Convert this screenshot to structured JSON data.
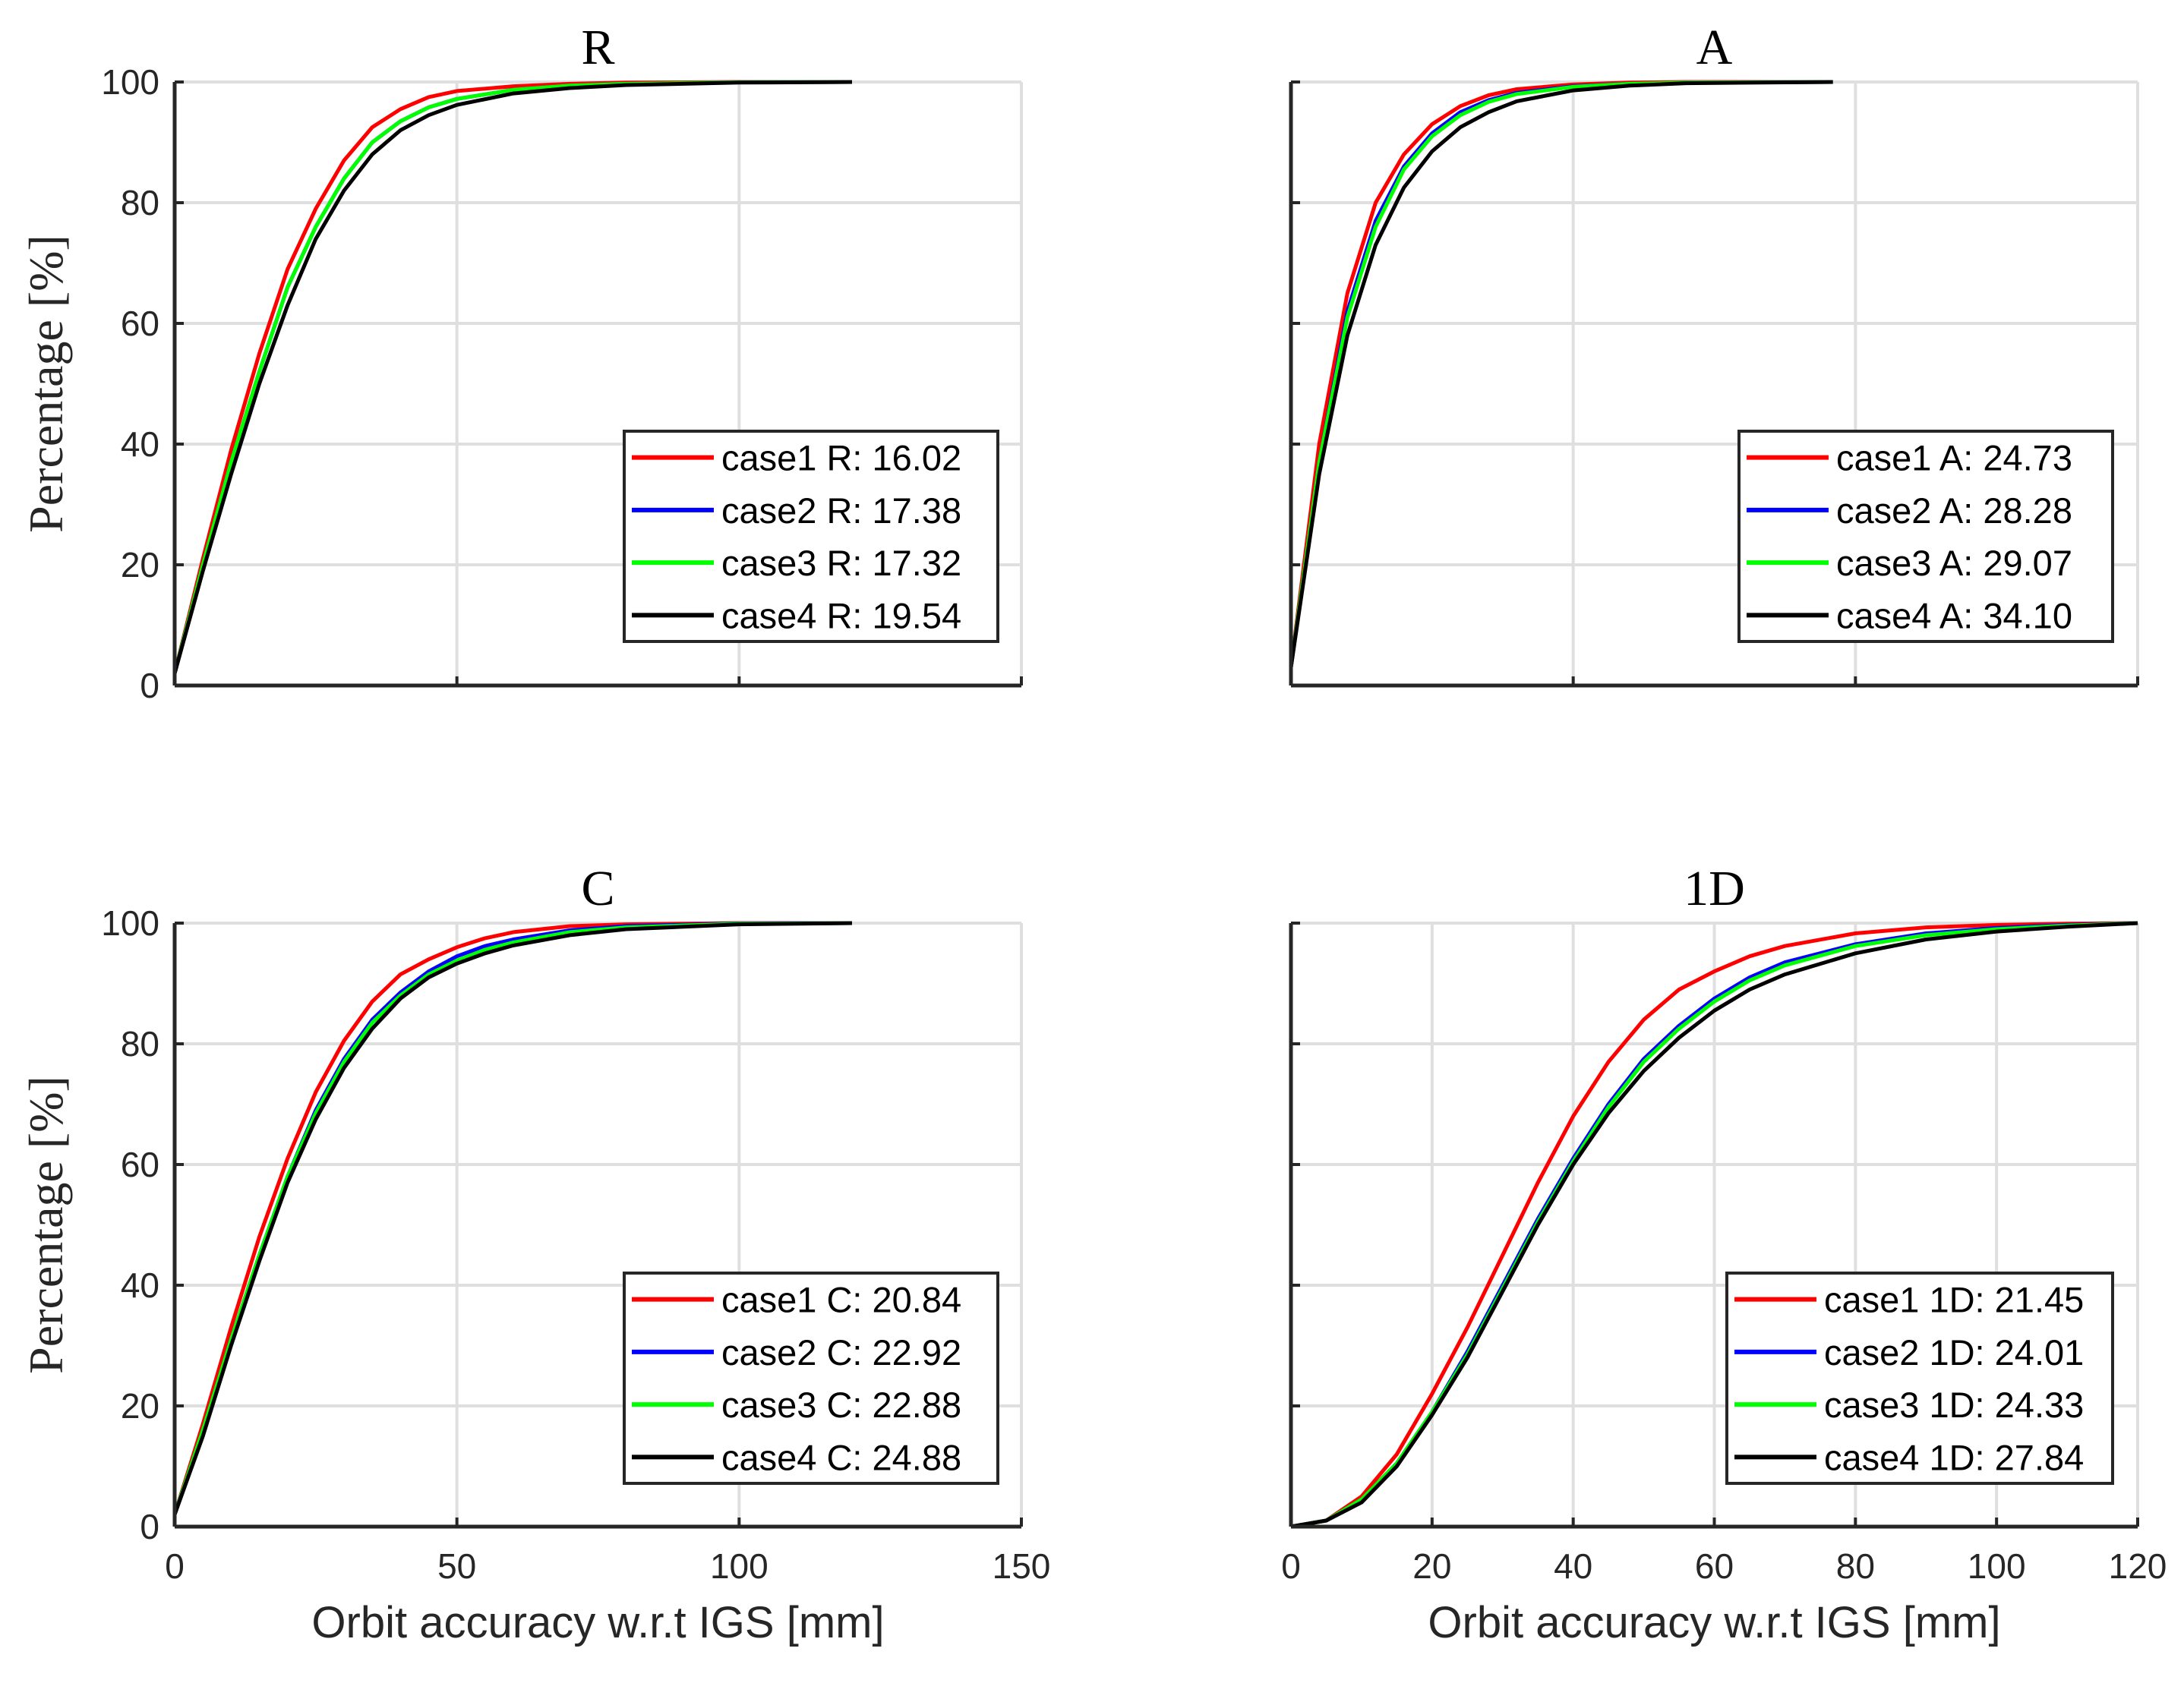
{
  "chart_data": [
    {
      "type": "line",
      "title": "R",
      "ylabel": "Percentage [%]",
      "xlabel": "",
      "xlim": [
        0,
        150
      ],
      "ylim": [
        0,
        100
      ],
      "xticks": [
        "0",
        "50",
        "100",
        "150"
      ],
      "yticks": [
        "0",
        "20",
        "40",
        "60",
        "80",
        "100"
      ],
      "show_xtick_labels": false,
      "show_ytick_labels": true,
      "legend_position": "middle-right",
      "series": [
        {
          "name": "case1 R: 16.02",
          "color": "#ff0000",
          "x": [
            0,
            5,
            10,
            15,
            20,
            25,
            30,
            35,
            40,
            45,
            50,
            60,
            70,
            80,
            100,
            120
          ],
          "values": [
            2,
            21,
            39,
            55,
            69,
            79,
            87,
            92.5,
            95.5,
            97.5,
            98.5,
            99.3,
            99.7,
            99.9,
            100,
            100
          ]
        },
        {
          "name": "case2 R: 17.38",
          "color": "#0000ff",
          "x": [
            0,
            5,
            10,
            15,
            20,
            25,
            30,
            35,
            40,
            45,
            50,
            60,
            70,
            80,
            100,
            120
          ],
          "values": [
            2,
            20,
            37,
            52,
            66,
            76,
            84,
            90,
            93.5,
            95.8,
            97.2,
            98.7,
            99.4,
            99.7,
            99.95,
            100
          ]
        },
        {
          "name": "case3 R: 17.32",
          "color": "#00ff00",
          "x": [
            0,
            5,
            10,
            15,
            20,
            25,
            30,
            35,
            40,
            45,
            50,
            60,
            70,
            80,
            100,
            120
          ],
          "values": [
            2,
            20,
            37,
            52,
            66,
            76,
            84,
            90,
            93.5,
            95.8,
            97.2,
            98.7,
            99.4,
            99.7,
            99.95,
            100
          ]
        },
        {
          "name": "case4 R: 19.54",
          "color": "#000000",
          "x": [
            0,
            5,
            10,
            15,
            20,
            25,
            30,
            35,
            40,
            45,
            50,
            60,
            70,
            80,
            100,
            120
          ],
          "values": [
            2,
            19,
            35,
            50,
            63,
            74,
            82,
            88,
            92,
            94.5,
            96.2,
            98.1,
            99,
            99.5,
            99.9,
            100
          ]
        }
      ]
    },
    {
      "type": "line",
      "title": "A",
      "ylabel": "",
      "xlabel": "",
      "xlim": [
        0,
        150
      ],
      "ylim": [
        0,
        100
      ],
      "xticks": [
        "0",
        "50",
        "100",
        "150"
      ],
      "yticks": [
        "0",
        "20",
        "40",
        "60",
        "80",
        "100"
      ],
      "show_xtick_labels": false,
      "show_ytick_labels": false,
      "legend_position": "middle-right",
      "series": [
        {
          "name": "case1 A: 24.73",
          "color": "#ff0000",
          "x": [
            0,
            5,
            10,
            15,
            20,
            25,
            30,
            35,
            40,
            50,
            60,
            70,
            96
          ],
          "values": [
            3,
            40,
            65,
            80,
            88,
            93,
            96,
            97.8,
            98.8,
            99.6,
            99.9,
            100,
            100
          ]
        },
        {
          "name": "case2 A: 28.28",
          "color": "#0000ff",
          "x": [
            0,
            5,
            10,
            15,
            20,
            25,
            30,
            35,
            40,
            50,
            60,
            70,
            96
          ],
          "values": [
            3,
            37,
            62,
            77,
            86,
            91.5,
            95,
            97,
            98.2,
            99.3,
            99.7,
            99.9,
            100
          ]
        },
        {
          "name": "case3 A: 29.07",
          "color": "#00ff00",
          "x": [
            0,
            5,
            10,
            15,
            20,
            25,
            30,
            35,
            40,
            50,
            60,
            70,
            96
          ],
          "values": [
            3,
            37,
            61,
            76,
            85.5,
            91,
            94.5,
            96.7,
            98,
            99.2,
            99.7,
            99.9,
            100
          ]
        },
        {
          "name": "case4 A: 34.10",
          "color": "#000000",
          "x": [
            0,
            5,
            10,
            15,
            20,
            25,
            30,
            35,
            40,
            50,
            60,
            70,
            96
          ],
          "values": [
            3,
            35,
            58,
            73,
            82.5,
            88.5,
            92.5,
            95,
            96.8,
            98.6,
            99.4,
            99.8,
            100
          ]
        }
      ]
    },
    {
      "type": "line",
      "title": "C",
      "ylabel": "Percentage [%]",
      "xlabel": "Orbit accuracy w.r.t IGS [mm]",
      "xlim": [
        0,
        150
      ],
      "ylim": [
        0,
        100
      ],
      "xticks": [
        "0",
        "50",
        "100",
        "150"
      ],
      "yticks": [
        "0",
        "20",
        "40",
        "60",
        "80",
        "100"
      ],
      "show_xtick_labels": true,
      "show_ytick_labels": true,
      "legend_position": "bottom-right",
      "series": [
        {
          "name": "case1 C: 20.84",
          "color": "#ff0000",
          "x": [
            0,
            5,
            10,
            15,
            20,
            25,
            30,
            35,
            40,
            45,
            50,
            55,
            60,
            70,
            80,
            100,
            120
          ],
          "values": [
            2,
            17,
            33,
            48,
            61,
            72,
            80.5,
            87,
            91.5,
            94,
            96,
            97.5,
            98.5,
            99.5,
            99.8,
            100,
            100
          ]
        },
        {
          "name": "case2 C: 22.92",
          "color": "#0000ff",
          "x": [
            0,
            5,
            10,
            15,
            20,
            25,
            30,
            35,
            40,
            45,
            50,
            55,
            60,
            70,
            80,
            100,
            120
          ],
          "values": [
            2,
            16,
            31,
            45,
            58,
            69,
            77.5,
            84,
            88.5,
            92,
            94.5,
            96.2,
            97.3,
            98.8,
            99.5,
            99.95,
            100
          ]
        },
        {
          "name": "case3 C: 22.88",
          "color": "#00ff00",
          "x": [
            0,
            5,
            10,
            15,
            20,
            25,
            30,
            35,
            40,
            45,
            50,
            55,
            60,
            70,
            80,
            100,
            120
          ],
          "values": [
            2,
            16,
            31,
            45,
            58,
            68.5,
            77,
            83.5,
            88,
            91.5,
            93.8,
            95.6,
            96.8,
            98.5,
            99.3,
            99.9,
            100
          ]
        },
        {
          "name": "case4 C: 24.88",
          "color": "#000000",
          "x": [
            0,
            5,
            10,
            15,
            20,
            25,
            30,
            35,
            40,
            45,
            50,
            55,
            60,
            70,
            80,
            100,
            120
          ],
          "values": [
            2,
            15,
            30,
            44,
            57,
            67.5,
            76,
            82.5,
            87.5,
            91,
            93.3,
            95,
            96.3,
            98,
            99,
            99.8,
            100
          ]
        }
      ]
    },
    {
      "type": "line",
      "title": "1D",
      "ylabel": "",
      "xlabel": "Orbit accuracy w.r.t IGS [mm]",
      "xlim": [
        0,
        120
      ],
      "ylim": [
        0,
        100
      ],
      "xticks": [
        "0",
        "20",
        "40",
        "60",
        "80",
        "100",
        "120"
      ],
      "yticks": [
        "0",
        "20",
        "40",
        "60",
        "80",
        "100"
      ],
      "show_xtick_labels": true,
      "show_ytick_labels": false,
      "legend_position": "bottom-right",
      "series": [
        {
          "name": "case1 1D: 21.45",
          "color": "#ff0000",
          "x": [
            0,
            5,
            10,
            15,
            20,
            25,
            30,
            35,
            40,
            45,
            50,
            55,
            60,
            65,
            70,
            80,
            90,
            100,
            110,
            120
          ],
          "values": [
            0,
            1,
            5,
            12,
            22,
            33,
            45,
            57,
            68,
            77,
            84,
            89,
            92,
            94.5,
            96.2,
            98.3,
            99.3,
            99.7,
            99.9,
            100
          ]
        },
        {
          "name": "case2 1D: 24.01",
          "color": "#0000ff",
          "x": [
            0,
            5,
            10,
            15,
            20,
            25,
            30,
            35,
            40,
            45,
            50,
            55,
            60,
            65,
            70,
            80,
            90,
            100,
            110,
            120
          ],
          "values": [
            0,
            1,
            4.5,
            10.5,
            19,
            29,
            40,
            51,
            61,
            70,
            77.5,
            83,
            87.5,
            91,
            93.5,
            96.5,
            98.3,
            99.2,
            99.7,
            100
          ]
        },
        {
          "name": "case3 1D: 24.33",
          "color": "#00ff00",
          "x": [
            0,
            5,
            10,
            15,
            20,
            25,
            30,
            35,
            40,
            45,
            50,
            55,
            60,
            65,
            70,
            80,
            90,
            100,
            110,
            120
          ],
          "values": [
            0,
            1,
            4.5,
            10.5,
            19,
            28.5,
            39.5,
            50.5,
            60.5,
            69.5,
            77,
            82.5,
            87,
            90.5,
            93,
            96.2,
            98,
            99,
            99.6,
            100
          ]
        },
        {
          "name": "case4 1D: 27.84",
          "color": "#000000",
          "x": [
            0,
            5,
            10,
            15,
            20,
            25,
            30,
            35,
            40,
            45,
            50,
            55,
            60,
            65,
            70,
            80,
            90,
            100,
            110,
            120
          ],
          "values": [
            0,
            1,
            4,
            10,
            18.5,
            28,
            39,
            50,
            60,
            68.5,
            75.5,
            81,
            85.5,
            89,
            91.5,
            95,
            97.3,
            98.6,
            99.4,
            100
          ]
        }
      ]
    }
  ]
}
